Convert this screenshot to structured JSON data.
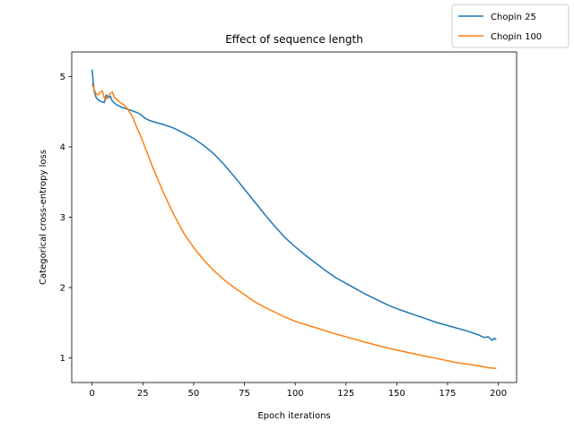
{
  "chart_data": {
    "type": "line",
    "title": "Effect of sequence length",
    "xlabel": "Epoch iterations",
    "ylabel": "Categorical cross-entropy loss",
    "xlim": [
      -10,
      209
    ],
    "ylim": [
      0.65,
      5.35
    ],
    "xticks": [
      0,
      25,
      50,
      75,
      100,
      125,
      150,
      175,
      200
    ],
    "yticks": [
      1,
      2,
      3,
      4,
      5
    ],
    "grid": false,
    "legend_position": "top-right (outside plot)",
    "series": [
      {
        "name": "Chopin 25",
        "color": "#1f77b4",
        "x": [
          0,
          1,
          2,
          3,
          4,
          5,
          6,
          7,
          8,
          9,
          10,
          12,
          14,
          16,
          18,
          20,
          22,
          24,
          26,
          28,
          30,
          35,
          40,
          45,
          50,
          55,
          60,
          65,
          70,
          75,
          80,
          85,
          90,
          95,
          100,
          105,
          110,
          115,
          120,
          125,
          130,
          135,
          140,
          145,
          150,
          155,
          160,
          165,
          170,
          175,
          180,
          185,
          190,
          193,
          195,
          197,
          198,
          199
        ],
        "y": [
          5.1,
          4.8,
          4.7,
          4.67,
          4.65,
          4.64,
          4.63,
          4.74,
          4.7,
          4.72,
          4.65,
          4.6,
          4.57,
          4.55,
          4.53,
          4.51,
          4.49,
          4.46,
          4.41,
          4.38,
          4.36,
          4.32,
          4.27,
          4.2,
          4.12,
          4.02,
          3.9,
          3.75,
          3.58,
          3.4,
          3.22,
          3.04,
          2.87,
          2.71,
          2.58,
          2.46,
          2.35,
          2.24,
          2.14,
          2.06,
          1.98,
          1.9,
          1.83,
          1.76,
          1.7,
          1.65,
          1.6,
          1.55,
          1.5,
          1.46,
          1.42,
          1.38,
          1.33,
          1.29,
          1.3,
          1.25,
          1.28,
          1.26
        ]
      },
      {
        "name": "Chopin 100",
        "color": "#ff7f0e",
        "x": [
          0,
          1,
          2,
          3,
          4,
          5,
          6,
          7,
          8,
          9,
          10,
          11,
          12,
          14,
          16,
          18,
          20,
          22,
          24,
          26,
          28,
          30,
          35,
          40,
          45,
          50,
          55,
          60,
          65,
          70,
          75,
          80,
          85,
          90,
          95,
          100,
          110,
          120,
          130,
          140,
          150,
          160,
          170,
          180,
          190,
          195,
          199
        ],
        "y": [
          4.9,
          4.82,
          4.75,
          4.74,
          4.78,
          4.8,
          4.7,
          4.68,
          4.72,
          4.76,
          4.78,
          4.7,
          4.68,
          4.63,
          4.59,
          4.52,
          4.42,
          4.28,
          4.15,
          4.0,
          3.85,
          3.7,
          3.36,
          3.05,
          2.78,
          2.57,
          2.39,
          2.24,
          2.11,
          2.0,
          1.9,
          1.8,
          1.72,
          1.65,
          1.58,
          1.52,
          1.43,
          1.34,
          1.26,
          1.18,
          1.11,
          1.05,
          0.99,
          0.93,
          0.89,
          0.86,
          0.85
        ]
      }
    ]
  }
}
